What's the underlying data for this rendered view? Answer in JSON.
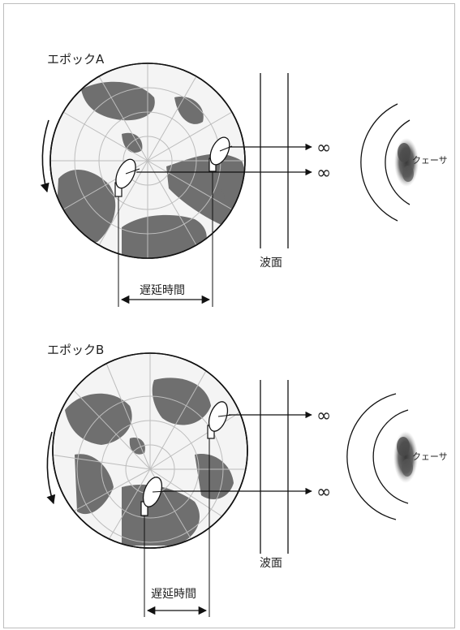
{
  "epoch_a": {
    "title": "エポックA",
    "wavefront_label": "波面",
    "delay_label": "遅延時間",
    "quasar_label": "クェーサ",
    "infinity_symbol": "∞"
  },
  "epoch_b": {
    "title": "エポックB",
    "wavefront_label": "波面",
    "delay_label": "遅延時間",
    "quasar_label": "クェーサ",
    "infinity_symbol": "∞"
  },
  "colors": {
    "land": "#6f6f6f",
    "ocean": "#f4f4f4",
    "lines": "#111111",
    "quasar": "#555555"
  }
}
